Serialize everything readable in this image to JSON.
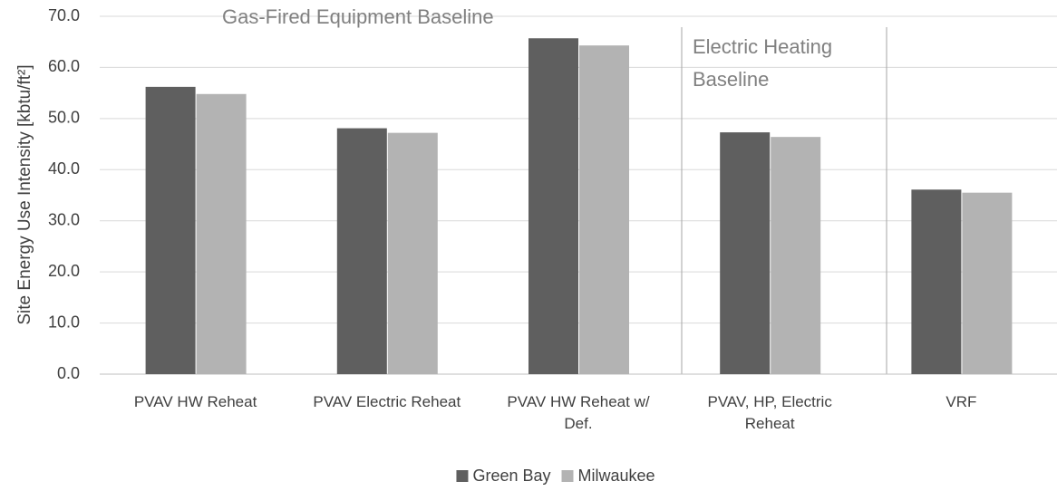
{
  "chart_data": {
    "type": "bar",
    "ylabel": "Site Energy Use Intensity [kbtu/ft²]",
    "categories": [
      "PVAV HW Reheat",
      "PVAV Electric Reheat",
      "PVAV HW Reheat w/ Def.",
      "PVAV, HP, Electric Reheat",
      "VRF"
    ],
    "series": [
      {
        "name": "Green Bay",
        "color": "#5f5f5f",
        "values": [
          56.2,
          48.1,
          65.7,
          47.3,
          36.1
        ]
      },
      {
        "name": "Milwaukee",
        "color": "#b3b3b3",
        "values": [
          54.8,
          47.2,
          64.3,
          46.4,
          35.5
        ]
      }
    ],
    "annotations": [
      "Gas-Fired Equipment Baseline",
      "Electric Heating",
      "Baseline"
    ],
    "ylim": [
      0,
      70
    ],
    "yticks": [
      {
        "value": 0,
        "label": "0.0"
      },
      {
        "value": 10,
        "label": "10.0"
      },
      {
        "value": 20,
        "label": "20.0"
      },
      {
        "value": 30,
        "label": "30.0"
      },
      {
        "value": 40,
        "label": "40.0"
      },
      {
        "value": 50,
        "label": "50.0"
      },
      {
        "value": 60,
        "label": "60.0"
      },
      {
        "value": 70,
        "label": "70.0"
      }
    ],
    "grid": true,
    "legend": "bottom"
  }
}
